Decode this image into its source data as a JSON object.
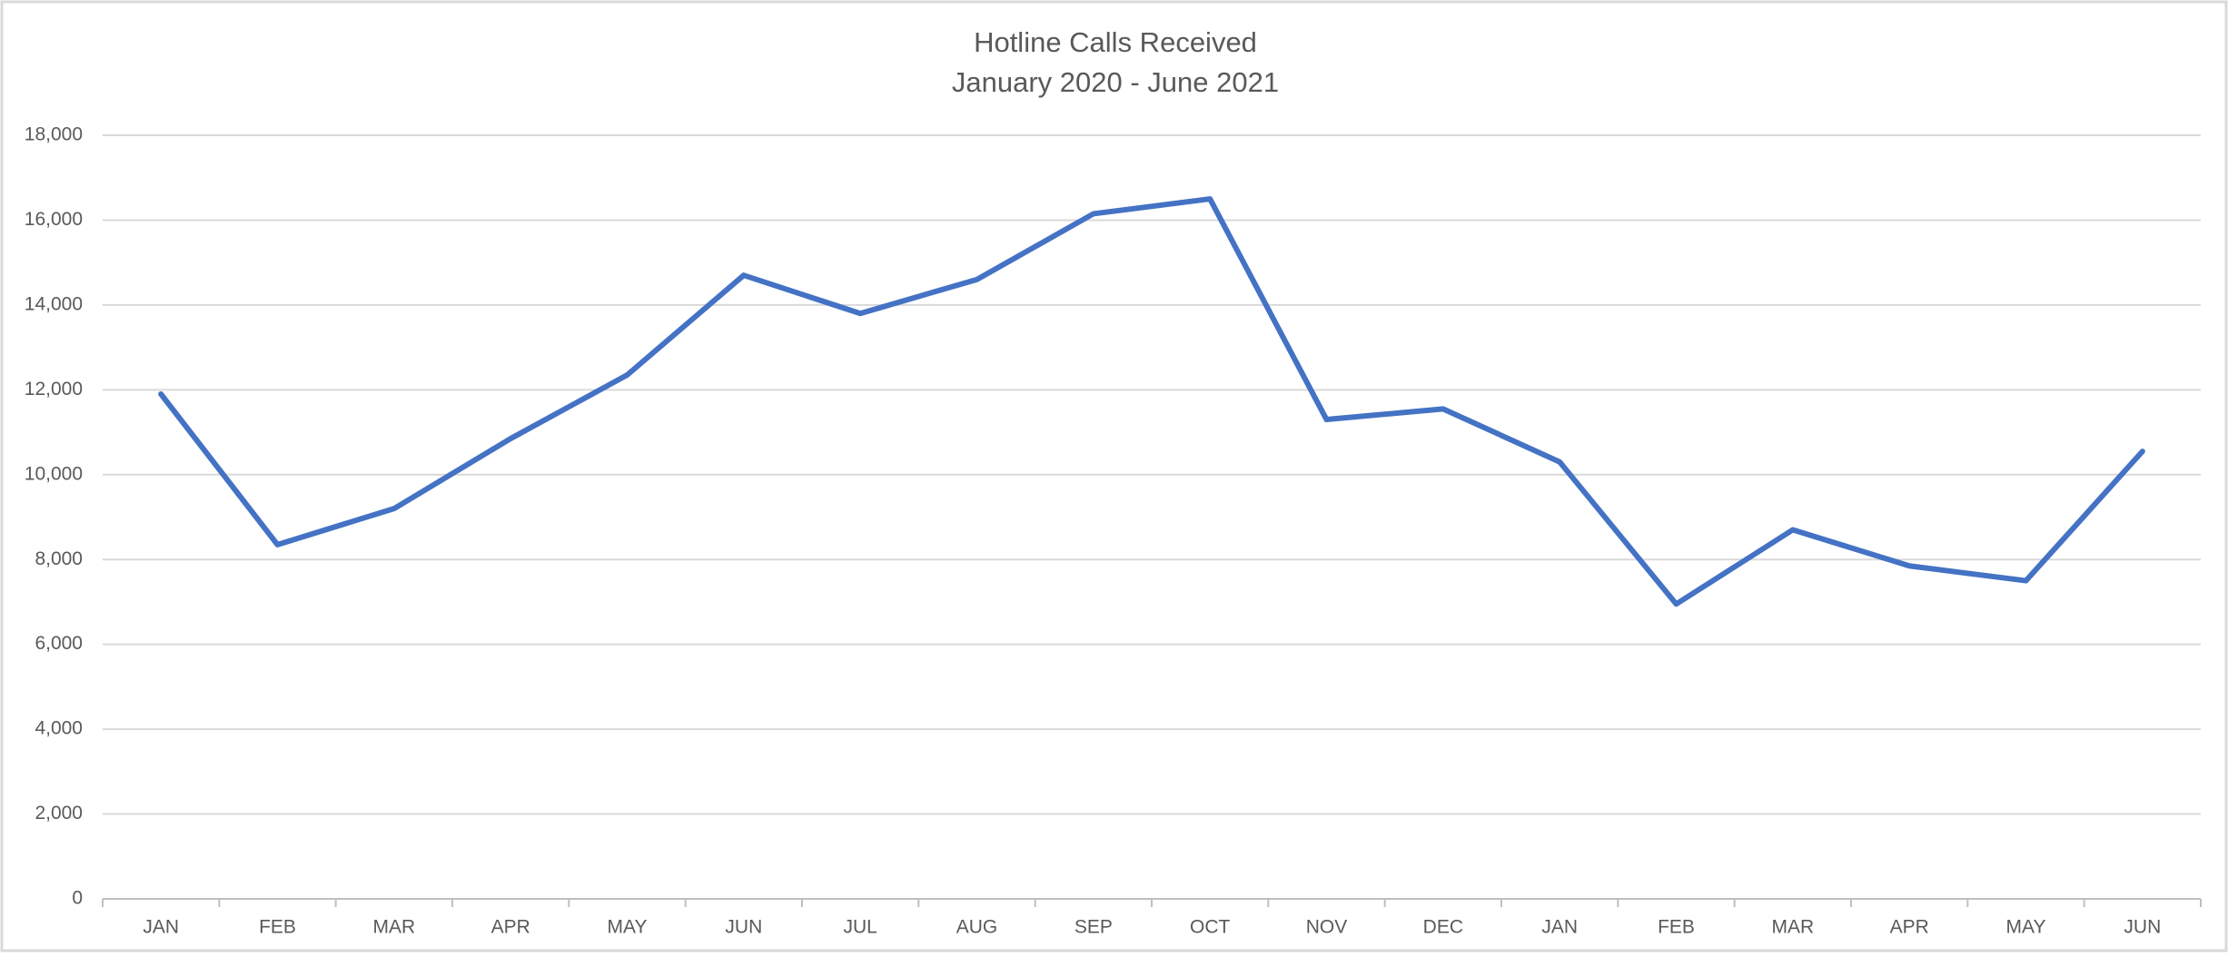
{
  "chart_data": {
    "type": "line",
    "title": "Hotline Calls Received",
    "subtitle": "January 2020 - June 2021",
    "categories": [
      "JAN",
      "FEB",
      "MAR",
      "APR",
      "MAY",
      "JUN",
      "JUL",
      "AUG",
      "SEP",
      "OCT",
      "NOV",
      "DEC",
      "JAN",
      "FEB",
      "MAR",
      "APR",
      "MAY",
      "JUN"
    ],
    "series": [
      {
        "name": "Hotline Calls",
        "color": "#4472c4",
        "values": [
          11900,
          8350,
          9200,
          10850,
          12350,
          14700,
          13800,
          14600,
          16150,
          16500,
          11300,
          11550,
          10300,
          6950,
          8700,
          7850,
          7500,
          10550
        ]
      }
    ],
    "ylim": [
      0,
      18000
    ],
    "yticks": [
      0,
      {
        "value": 2000,
        "label": "2,000"
      },
      {
        "value": 4000,
        "label": "4,000"
      },
      {
        "value": 6000,
        "label": "6,000"
      },
      {
        "value": 8000,
        "label": "8,000"
      },
      {
        "value": 10000,
        "label": "10,000"
      },
      {
        "value": 12000,
        "label": "12,000"
      },
      {
        "value": 14000,
        "label": "14,000"
      },
      {
        "value": 16000,
        "label": "16,000"
      },
      {
        "value": 18000,
        "label": "18,000"
      }
    ],
    "grid": true
  }
}
